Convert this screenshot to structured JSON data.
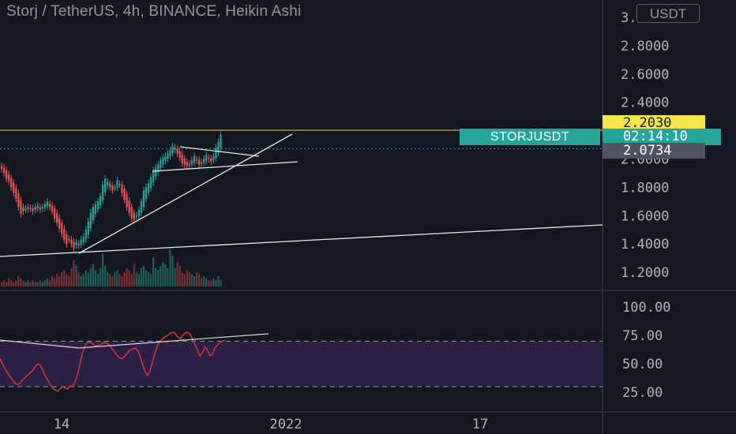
{
  "header": {
    "title": "Storj / TetherUS, 4h, BINANCE, Heikin Ashi",
    "currency_button": "USDT"
  },
  "price_labels": {
    "alert_price": "2.2030",
    "symbol": "STORJUSDT",
    "countdown": "02:14:10",
    "last_price": "2.0734"
  },
  "colors": {
    "background": "#131722",
    "up": "#26a69a",
    "down": "#ef5350",
    "alert_line": "#f7c84a",
    "rsi": "#d62f3a",
    "rsi_band": "#2a1f44"
  },
  "chart_data": [
    {
      "type": "candlestick",
      "series_style": "Heikin Ashi",
      "ylim": [
        1.1,
        3.0
      ],
      "y_ticks": [
        "3.0000",
        "2.8000",
        "2.6000",
        "2.4000",
        "2.2000",
        "2.0000",
        "1.8000",
        "1.6000",
        "1.4000",
        "1.2000"
      ],
      "x_ticks": [
        "14",
        "2022",
        "17"
      ],
      "horizontal_line": 2.203,
      "close_values": [
        1.93,
        1.9,
        1.86,
        1.84,
        1.8,
        1.76,
        1.72,
        1.66,
        1.61,
        1.63,
        1.65,
        1.66,
        1.65,
        1.63,
        1.66,
        1.67,
        1.64,
        1.66,
        1.68,
        1.7,
        1.66,
        1.63,
        1.58,
        1.55,
        1.51,
        1.47,
        1.43,
        1.4,
        1.43,
        1.4,
        1.37,
        1.41,
        1.39,
        1.43,
        1.45,
        1.5,
        1.56,
        1.62,
        1.66,
        1.68,
        1.7,
        1.74,
        1.82,
        1.86,
        1.84,
        1.8,
        1.78,
        1.8,
        1.85,
        1.82,
        1.76,
        1.71,
        1.66,
        1.62,
        1.58,
        1.57,
        1.6,
        1.64,
        1.7,
        1.78,
        1.8,
        1.83,
        1.87,
        1.92,
        1.94,
        1.96,
        1.99,
        2.01,
        2.02,
        2.04,
        2.06,
        2.09,
        2.08,
        2.04,
        2.01,
        1.97,
        1.96,
        1.95,
        1.96,
        1.99,
        2.02,
        1.99,
        1.96,
        1.97,
        2.0,
        2.03,
        2.0,
        1.98,
        2.02,
        2.08,
        2.12,
        2.17
      ],
      "volumes": [
        2,
        3,
        2,
        4,
        3,
        2,
        3,
        5,
        4,
        3,
        2,
        3,
        2,
        3,
        2,
        2,
        3,
        2,
        3,
        4,
        3,
        5,
        4,
        6,
        5,
        7,
        8,
        6,
        5,
        9,
        13,
        10,
        7,
        5,
        6,
        8,
        7,
        9,
        11,
        8,
        6,
        9,
        16,
        10,
        7,
        6,
        5,
        7,
        8,
        6,
        5,
        7,
        9,
        8,
        6,
        11,
        7,
        6,
        9,
        10,
        8,
        7,
        6,
        14,
        9,
        8,
        10,
        12,
        11,
        9,
        18,
        15,
        9,
        12,
        10,
        7,
        6,
        8,
        7,
        6,
        5,
        7,
        6,
        4,
        5,
        4,
        3,
        3,
        4,
        3,
        5,
        3
      ]
    },
    {
      "type": "line",
      "name": "RSI",
      "ylim": [
        10,
        110
      ],
      "y_ticks": [
        "100.00",
        "75.00",
        "50.00",
        "25.00"
      ],
      "bands": [
        30,
        70
      ],
      "values": [
        55,
        50,
        46,
        42,
        39,
        36,
        33,
        32,
        33,
        36,
        38,
        40,
        42,
        44,
        47,
        50,
        49,
        45,
        40,
        36,
        32,
        29,
        27,
        26,
        28,
        30,
        29,
        28,
        31,
        30,
        34,
        41,
        50,
        60,
        66,
        69,
        69,
        68,
        66,
        66,
        67,
        68,
        69,
        68,
        66,
        63,
        60,
        57,
        55,
        55,
        57,
        60,
        62,
        63,
        64,
        62,
        57,
        50,
        43,
        40,
        44,
        52,
        60,
        66,
        70,
        72,
        74,
        75,
        77,
        78,
        77,
        74,
        72,
        75,
        77,
        78,
        76,
        72,
        67,
        62,
        57,
        60,
        65,
        62,
        57,
        59,
        64,
        67,
        69,
        70,
        71
      ]
    }
  ]
}
